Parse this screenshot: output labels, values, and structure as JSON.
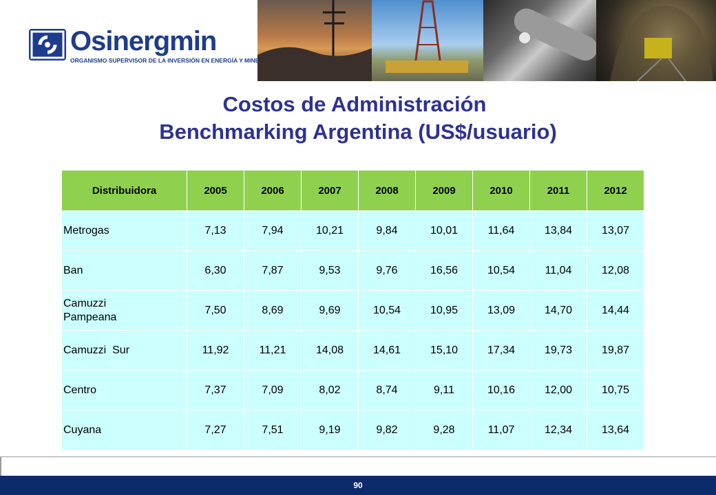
{
  "logo": {
    "name": "Osinergmin",
    "subtitle": "ORGANISMO SUPERVISOR DE LA INVERSIÓN EN ENERGÍA Y MINERÍA"
  },
  "title": {
    "line1": "Costos de Administración",
    "line2": "Benchmarking Argentina (US$/usuario)"
  },
  "table": {
    "headers": [
      "Distribuidora",
      "2005",
      "2006",
      "2007",
      "2008",
      "2009",
      "2010",
      "2011",
      "2012"
    ],
    "rows": [
      [
        "Metrogas",
        "7,13",
        "7,94",
        "10,21",
        "9,84",
        "10,01",
        "11,64",
        "13,84",
        "13,07"
      ],
      [
        "Ban",
        "6,30",
        "7,87",
        "9,53",
        "9,76",
        "16,56",
        "10,54",
        "11,04",
        "12,08"
      ],
      [
        "Camuzzi Pampeana",
        "7,50",
        "8,69",
        "9,69",
        "10,54",
        "10,95",
        "13,09",
        "14,70",
        "14,44"
      ],
      [
        "Camuzzi  Sur",
        "11,92",
        "11,21",
        "14,08",
        "14,61",
        "15,10",
        "17,34",
        "19,73",
        "19,87"
      ],
      [
        "Centro",
        "7,37",
        "7,09",
        "8,02",
        "8,74",
        "9,11",
        "10,16",
        "12,00",
        "10,75"
      ],
      [
        "Cuyana",
        "7,27",
        "7,51",
        "9,19",
        "9,82",
        "9,28",
        "11,07",
        "12,34",
        "13,64"
      ]
    ]
  },
  "footer": {
    "page_number": "90"
  },
  "colors": {
    "brand": "#1e3c8c",
    "title": "#2e3192",
    "header_bg": "#8fd14f",
    "cell_bg": "#ccffff",
    "footer_bg": "#0d2b6b"
  }
}
